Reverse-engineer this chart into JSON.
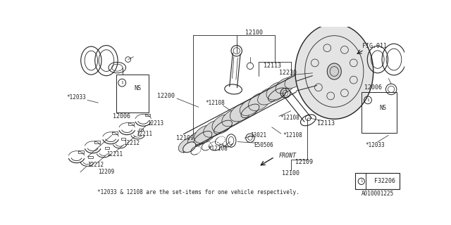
{
  "bg_color": "#ffffff",
  "fig_width": 6.4,
  "fig_height": 3.2,
  "dpi": 100,
  "bottom_text": "*12033 & 12108 are the set-items for one vehicle respectively.",
  "part_id": "A010001225",
  "fig_code": "F32206",
  "fig_ref": "FIG.011"
}
